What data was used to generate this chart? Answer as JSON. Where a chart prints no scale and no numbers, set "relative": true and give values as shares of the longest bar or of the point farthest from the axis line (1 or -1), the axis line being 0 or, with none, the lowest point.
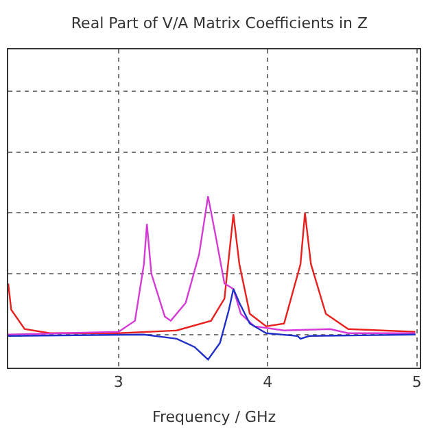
{
  "chart_data": {
    "type": "line",
    "title": "Real Part of V/A Matrix Coefficients in Z",
    "xlabel": "Frequency / GHz",
    "relative": true,
    "xlim": [
      2.26,
      5.02
    ],
    "xticks": [
      3,
      4,
      5
    ],
    "grid": true,
    "marker": "none",
    "line_style": "solid",
    "series": [
      {
        "color": "#e8201e",
        "x": [
          2.26,
          2.28,
          2.37,
          2.54,
          3.0,
          3.39,
          3.62,
          3.71,
          3.77,
          3.81,
          3.88,
          3.99,
          4.11,
          4.22,
          4.25,
          4.29,
          4.39,
          4.54,
          4.99
        ],
        "values": [
          0.37,
          0.18,
          0.04,
          0.01,
          0.01,
          0.03,
          0.1,
          0.26,
          0.87,
          0.51,
          0.15,
          0.06,
          0.08,
          0.51,
          0.88,
          0.51,
          0.15,
          0.04,
          0.02
        ]
      },
      {
        "color": "#d63ad6",
        "x": [
          2.26,
          3.0,
          3.11,
          3.17,
          3.19,
          3.22,
          3.31,
          3.35,
          3.45,
          3.54,
          3.6,
          3.65,
          3.71,
          3.77,
          3.82,
          3.91,
          4.11,
          4.42,
          4.54,
          4.99
        ],
        "values": [
          0,
          0.02,
          0.1,
          0.51,
          0.8,
          0.44,
          0.13,
          0.1,
          0.23,
          0.58,
          1.0,
          0.72,
          0.37,
          0.33,
          0.15,
          0.06,
          0.03,
          0.04,
          0.01,
          0.01
        ]
      },
      {
        "color": "#1f2fc8",
        "x": [
          2.26,
          3.17,
          3.39,
          3.51,
          3.6,
          3.68,
          3.74,
          3.77,
          3.81,
          3.88,
          3.99,
          4.2,
          4.22,
          4.28,
          4.99
        ],
        "values": [
          -0.01,
          0,
          -0.03,
          -0.09,
          -0.18,
          -0.06,
          0.18,
          0.33,
          0.23,
          0.08,
          0.01,
          -0.01,
          -0.03,
          -0.01,
          0
        ]
      }
    ]
  }
}
